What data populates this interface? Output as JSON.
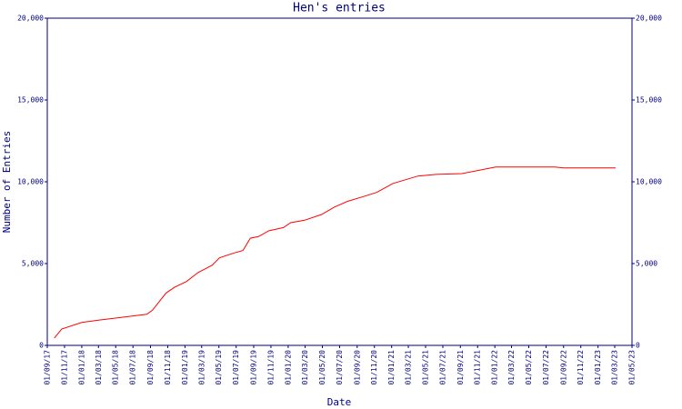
{
  "chart_data": {
    "type": "line",
    "title": "Hen's entries",
    "x_label": "Date",
    "y_label": "Number of Entries",
    "color": "#ff0000",
    "x": [
      "2017-09-26",
      "2017-10-22",
      "2018-01-01",
      "2018-03-04",
      "2018-08-19",
      "2018-09-08",
      "2018-10-26",
      "2018-11-25",
      "2019-01-06",
      "2019-02-16",
      "2019-04-07",
      "2019-05-03",
      "2019-06-24",
      "2019-07-25",
      "2019-08-20",
      "2019-09-18",
      "2019-10-24",
      "2019-12-15",
      "2020-01-10",
      "2020-02-28",
      "2020-04-28",
      "2020-06-12",
      "2020-07-28",
      "2020-09-24",
      "2020-11-09",
      "2021-01-06",
      "2021-04-04",
      "2021-06-07",
      "2021-09-06",
      "2022-01-04",
      "2022-08-01",
      "2022-09-01",
      "2023-03-04"
    ],
    "values": [
      450,
      1000,
      1400,
      1550,
      1900,
      2150,
      3200,
      3550,
      3900,
      4450,
      4900,
      5350,
      5650,
      5800,
      6550,
      6650,
      7000,
      7200,
      7500,
      7650,
      8000,
      8450,
      8800,
      9100,
      9350,
      9900,
      10350,
      10450,
      10500,
      10900,
      10900,
      10850,
      10850
    ],
    "xlim": [
      "2017-09-01",
      "2023-05-01"
    ],
    "xticks": [
      {
        "value": "2017-09-01",
        "label": "01/09/17"
      },
      {
        "value": "2017-11-01",
        "label": "01/11/17"
      },
      {
        "value": "2018-01-01",
        "label": "01/01/18"
      },
      {
        "value": "2018-03-01",
        "label": "01/03/18"
      },
      {
        "value": "2018-05-01",
        "label": "01/05/18"
      },
      {
        "value": "2018-07-01",
        "label": "01/07/18"
      },
      {
        "value": "2018-09-01",
        "label": "01/09/18"
      },
      {
        "value": "2018-11-01",
        "label": "01/11/18"
      },
      {
        "value": "2019-01-01",
        "label": "01/01/19"
      },
      {
        "value": "2019-03-01",
        "label": "01/03/19"
      },
      {
        "value": "2019-05-01",
        "label": "01/05/19"
      },
      {
        "value": "2019-07-01",
        "label": "01/07/19"
      },
      {
        "value": "2019-09-01",
        "label": "01/09/19"
      },
      {
        "value": "2019-11-01",
        "label": "01/11/19"
      },
      {
        "value": "2020-01-01",
        "label": "01/01/20"
      },
      {
        "value": "2020-03-01",
        "label": "01/03/20"
      },
      {
        "value": "2020-05-01",
        "label": "01/05/20"
      },
      {
        "value": "2020-07-01",
        "label": "01/07/20"
      },
      {
        "value": "2020-09-01",
        "label": "01/09/20"
      },
      {
        "value": "2020-11-01",
        "label": "01/11/20"
      },
      {
        "value": "2021-01-01",
        "label": "01/01/21"
      },
      {
        "value": "2021-03-01",
        "label": "01/03/21"
      },
      {
        "value": "2021-05-01",
        "label": "01/05/21"
      },
      {
        "value": "2021-07-01",
        "label": "01/07/21"
      },
      {
        "value": "2021-09-01",
        "label": "01/09/21"
      },
      {
        "value": "2021-11-01",
        "label": "01/11/21"
      },
      {
        "value": "2022-01-01",
        "label": "01/01/22"
      },
      {
        "value": "2022-03-01",
        "label": "01/03/22"
      },
      {
        "value": "2022-05-01",
        "label": "01/05/22"
      },
      {
        "value": "2022-07-01",
        "label": "01/07/22"
      },
      {
        "value": "2022-09-01",
        "label": "01/09/22"
      },
      {
        "value": "2022-11-01",
        "label": "01/11/22"
      },
      {
        "value": "2023-01-01",
        "label": "01/01/23"
      },
      {
        "value": "2023-03-01",
        "label": "01/03/23"
      },
      {
        "value": "2023-05-01",
        "label": "01/05/23"
      }
    ],
    "ylim": [
      0,
      20000
    ],
    "yticks": [
      0,
      {
        "value": 5000,
        "label": "5,000"
      },
      {
        "value": 10000,
        "label": "10,000"
      },
      {
        "value": 15000,
        "label": "15,000"
      },
      {
        "value": 20000,
        "label": "20,000"
      }
    ],
    "grid": false
  }
}
